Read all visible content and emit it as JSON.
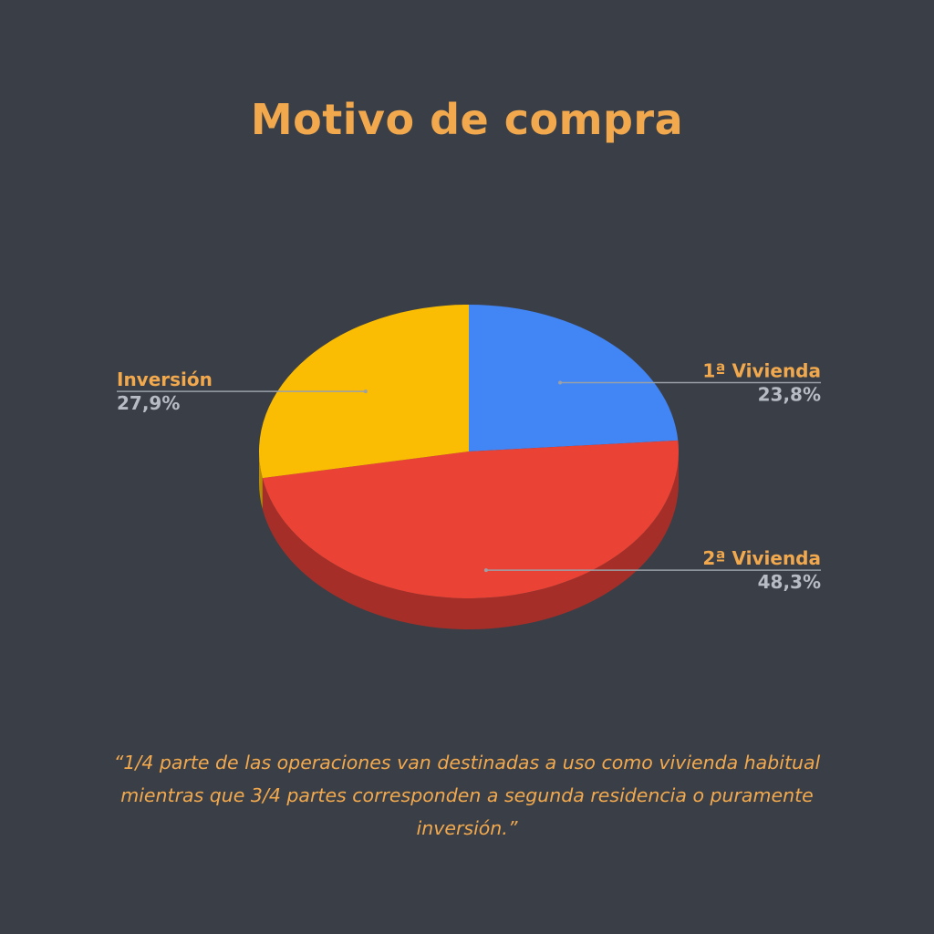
{
  "title": "Motivo de compra",
  "quote": "“1/4 parte de las operaciones van destinadas a uso como vivienda habitual mientras que 3/4 partes corresponden a segunda residencia o puramente inversión.”",
  "chart_data": {
    "type": "pie",
    "style": "3d",
    "title": "Motivo de compra",
    "slices": [
      {
        "label": "1ª Vivienda",
        "value": 23.8,
        "display": "23,8%",
        "color": "#4285f4",
        "side_color": "#2f63bd"
      },
      {
        "label": "2ª Vivienda",
        "value": 48.3,
        "display": "48,3%",
        "color": "#ea4335",
        "side_color": "#a52f28"
      },
      {
        "label": "Inversión",
        "value": 27.9,
        "display": "27,9%",
        "color": "#fbbc04",
        "side_color": "#b88a05"
      }
    ],
    "label_color": "#f2a94e",
    "value_color": "#b7bcc4",
    "leader_color": "#9aa0a8"
  }
}
